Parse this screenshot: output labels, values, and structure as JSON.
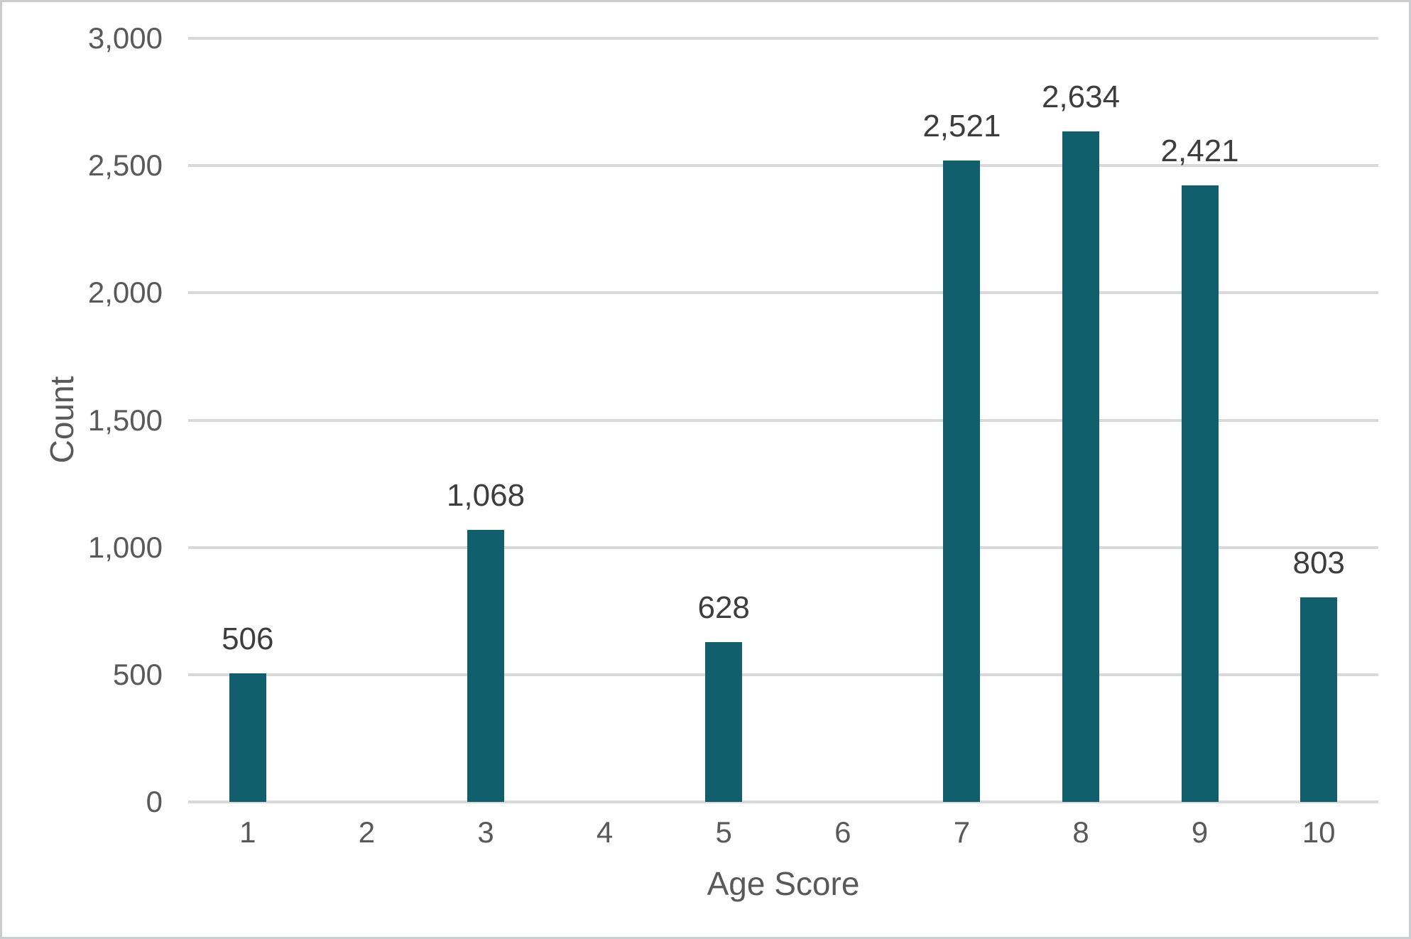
{
  "chart_data": {
    "type": "bar",
    "categories": [
      "1",
      "2",
      "3",
      "4",
      "5",
      "6",
      "7",
      "8",
      "9",
      "10"
    ],
    "values": [
      506,
      0,
      1068,
      0,
      628,
      0,
      2521,
      2634,
      2421,
      803
    ],
    "value_labels": [
      "506",
      "",
      "1,068",
      "",
      "628",
      "",
      "2,521",
      "2,634",
      "2,421",
      "803"
    ],
    "xlabel": "Age Score",
    "ylabel": "Count",
    "ylim": [
      0,
      3000
    ],
    "ytick_step": 500,
    "yticks": [
      0,
      500,
      1000,
      1500,
      2000,
      2500,
      3000
    ],
    "ytick_labels": [
      "0",
      "500",
      "1,000",
      "1,500",
      "2,000",
      "2,500",
      "3,000"
    ],
    "grid": "horizontal-only",
    "legend": "none",
    "bar_color": "#115f6d",
    "value_label_color": "#3d3d3d",
    "axis_text_color": "#595959",
    "gridline_color": "#d9d9d9",
    "background_color": "#ffffff",
    "frame_border_color": "#cbcccd"
  }
}
